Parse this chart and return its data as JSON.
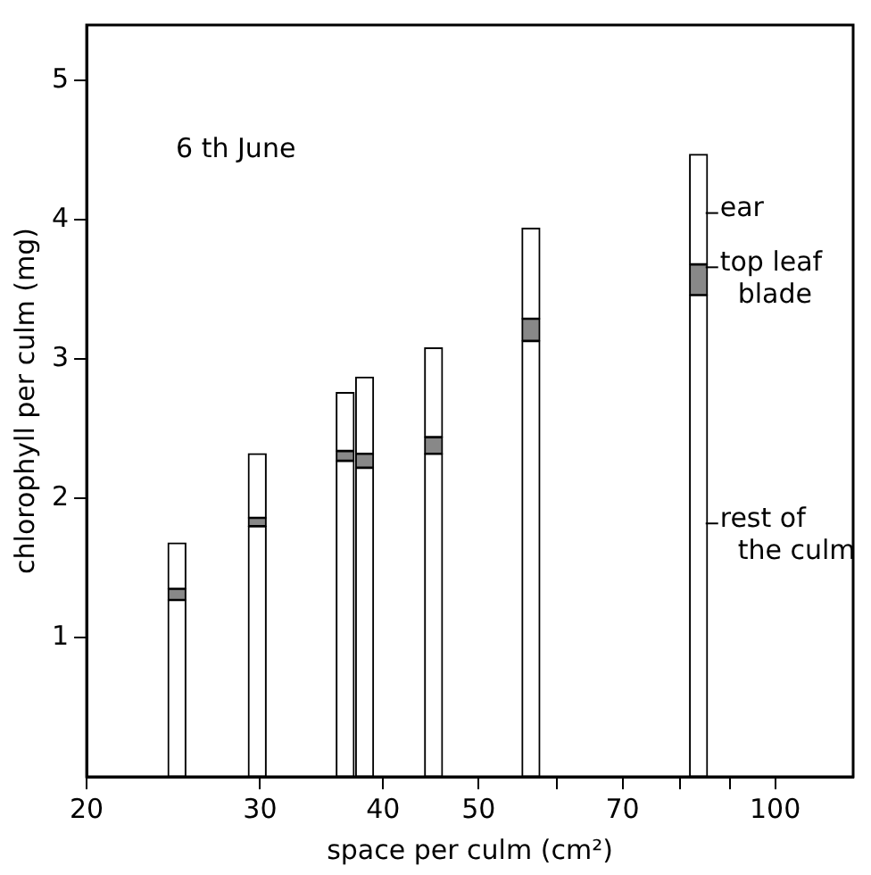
{
  "chart_data": {
    "type": "bar",
    "stacked": true,
    "xlabel": "space per culm (cm²)",
    "ylabel": "chlorophyll per culm (mg)",
    "annotations": [
      "6 th June"
    ],
    "x": [
      24.7,
      29.8,
      36.6,
      38.3,
      45,
      56.5,
      83.6
    ],
    "log": "x",
    "xlim": [
      20,
      120
    ],
    "xticks": [
      20,
      30,
      40,
      50,
      {
        "value": 60,
        "label": null
      },
      70,
      {
        "value": 80,
        "label": null
      },
      {
        "value": 90,
        "label": null
      },
      100
    ],
    "ylim": [
      0,
      5.4
    ],
    "yticks": [
      1,
      2,
      3,
      4,
      5
    ],
    "grid": false,
    "legend": "right",
    "series": [
      {
        "name": "rest of the culm",
        "color": "#ffffff",
        "values": [
          1.27,
          1.8,
          2.27,
          2.22,
          2.32,
          3.13,
          3.46
        ]
      },
      {
        "name": "top leaf blade",
        "color": "#888888",
        "values": [
          0.08,
          0.06,
          0.07,
          0.1,
          0.12,
          0.16,
          0.22
        ]
      },
      {
        "name": "ear",
        "color": "#ffffff",
        "values": [
          0.33,
          0.46,
          0.42,
          0.55,
          0.64,
          0.65,
          0.79
        ]
      }
    ]
  }
}
